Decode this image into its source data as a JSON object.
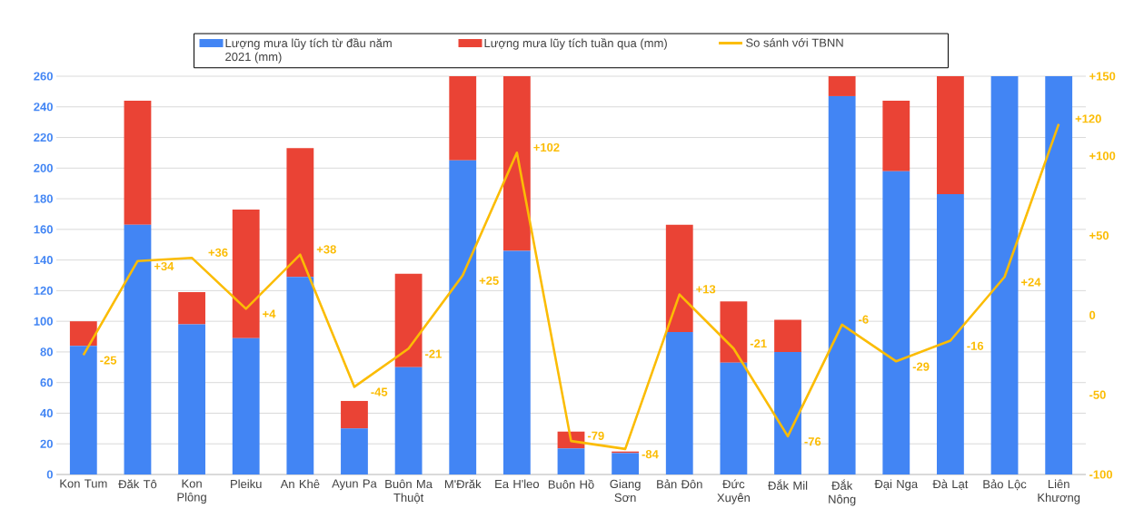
{
  "chart_data": {
    "type": "bar",
    "stacked": true,
    "categories": [
      "Kon Tum",
      "Đăk Tô",
      "Kon Plông",
      "Pleiku",
      "An Khê",
      "Ayun Pa",
      "Buôn Ma Thuột",
      "M'Đrăk",
      "Ea H'leo",
      "Buôn Hồ",
      "Giang Sơn",
      "Bản Đôn",
      "Đức Xuyên",
      "Đắk Mil",
      "Đắk Nông",
      "Đại Nga",
      "Đà Lạt",
      "Bảo Lộc",
      "Liên Khương"
    ],
    "series": [
      {
        "name": "Lượng mưa lũy tích từ đầu năm 2021 (mm)",
        "color": "#4285f4",
        "values": [
          84,
          163,
          98,
          89,
          129,
          30,
          70,
          205,
          146,
          17,
          14,
          93,
          73,
          80,
          247,
          198,
          183,
          260,
          260
        ]
      },
      {
        "name": "Lượng mưa lũy tích tuần qua (mm)",
        "color": "#ea4335",
        "values": [
          16,
          81,
          21,
          84,
          84,
          18,
          61,
          55,
          114,
          11,
          1,
          70,
          40,
          21,
          13,
          46,
          77,
          0,
          0
        ]
      },
      {
        "name": "So sánh với TBNN",
        "type": "line",
        "axis": "y2",
        "color": "#fbbc04",
        "values": [
          -25,
          34,
          36,
          4,
          38,
          -45,
          -21,
          25,
          102,
          -79,
          -84,
          13,
          -21,
          -76,
          -6,
          -29,
          -16,
          24,
          120
        ],
        "value_labels": [
          "-25",
          "+34",
          "+36",
          "+4",
          "+38",
          "-45",
          "-21",
          "+25",
          "+102",
          "-79",
          "-84",
          "+13",
          "-21",
          "-76",
          "-6",
          "-29",
          "-16",
          "+24",
          "+120"
        ]
      }
    ],
    "ylim": [
      0,
      260
    ],
    "yticks": [
      0,
      20,
      40,
      60,
      80,
      100,
      120,
      140,
      160,
      180,
      200,
      220,
      240,
      260
    ],
    "y2lim": [
      -100,
      150
    ],
    "y2ticks": [
      {
        "value": -100,
        "label": "-100"
      },
      {
        "value": -50,
        "label": "-50"
      },
      0,
      {
        "value": 50,
        "label": "+50"
      },
      {
        "value": 100,
        "label": "+100"
      },
      {
        "value": 150,
        "label": "+150"
      }
    ],
    "grid": "y",
    "legend": "top"
  }
}
